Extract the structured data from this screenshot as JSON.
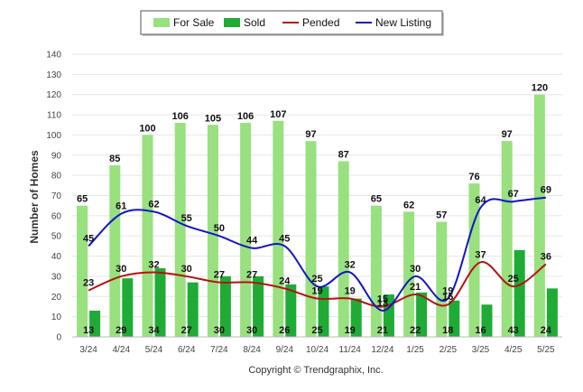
{
  "chart_data": {
    "type": "bar",
    "categories": [
      "3/24",
      "4/24",
      "5/24",
      "6/24",
      "7/24",
      "8/24",
      "9/24",
      "10/24",
      "11/24",
      "12/24",
      "1/25",
      "2/25",
      "3/25",
      "4/25",
      "5/25"
    ],
    "series": [
      {
        "name": "For Sale",
        "kind": "bar",
        "color": "#99e07f",
        "values": [
          65,
          85,
          100,
          106,
          105,
          106,
          107,
          97,
          87,
          65,
          62,
          57,
          76,
          97,
          120
        ]
      },
      {
        "name": "Sold",
        "kind": "bar",
        "color": "#1fab36",
        "values": [
          13,
          29,
          34,
          27,
          30,
          30,
          26,
          25,
          19,
          21,
          22,
          18,
          16,
          43,
          24
        ]
      },
      {
        "name": "Pended",
        "kind": "line",
        "color": "#b31313",
        "values": [
          23,
          30,
          32,
          30,
          27,
          27,
          24,
          19,
          19,
          15,
          21,
          16,
          37,
          25,
          36
        ]
      },
      {
        "name": "New Listing",
        "kind": "line",
        "color": "#1414c8",
        "values": [
          45,
          61,
          62,
          55,
          50,
          44,
          45,
          25,
          32,
          13,
          30,
          19,
          64,
          67,
          69
        ]
      }
    ],
    "ylabel": "Number of Homes",
    "xlabel": "",
    "ylim": [
      0,
      140
    ],
    "yticks": [
      0,
      10,
      20,
      30,
      40,
      50,
      60,
      70,
      80,
      90,
      100,
      110,
      120,
      130,
      140
    ],
    "grid": true,
    "legend_position": "top-center"
  },
  "copyright": "Copyright © Trendgraphix, Inc."
}
